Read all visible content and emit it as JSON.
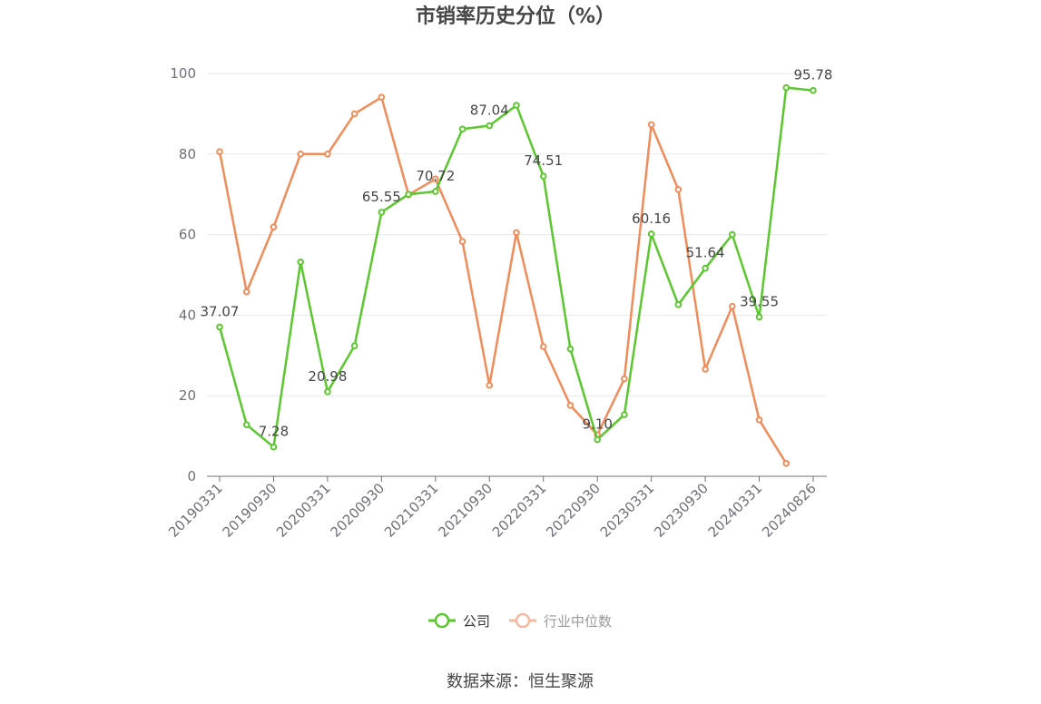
{
  "chart_data": {
    "type": "line",
    "title": "市销率历史分位（%）",
    "x": [
      "20190331",
      "20190630",
      "20190930",
      "20191231",
      "20200331",
      "20200630",
      "20200930",
      "20201231",
      "20210331",
      "20210630",
      "20210930",
      "20211231",
      "20220331",
      "20220630",
      "20220930",
      "20221231",
      "20230331",
      "20230630",
      "20230930",
      "20231231",
      "20240331",
      "20240630",
      "20240826"
    ],
    "xticks": [
      "20190331",
      "20190930",
      "20200331",
      "20200930",
      "20210331",
      "20210930",
      "20220331",
      "20220930",
      "20230331",
      "20230930",
      "20240331",
      "20240826"
    ],
    "yticks": [
      0,
      20,
      40,
      60,
      80,
      100
    ],
    "ylim": [
      0,
      100
    ],
    "grid": true,
    "legend_position": "bottom",
    "series": [
      {
        "name": "公司",
        "color": "#5bc72e",
        "values": [
          37.07,
          12.8,
          7.28,
          53.2,
          20.98,
          32.4,
          65.55,
          70.0,
          70.72,
          86.2,
          87.04,
          92.1,
          74.51,
          31.6,
          9.1,
          15.3,
          60.16,
          42.6,
          51.64,
          60.0,
          39.55,
          96.5,
          95.78
        ],
        "labels": {
          "0": "37.07",
          "2": "7.28",
          "4": "20.98",
          "6": "65.55",
          "8": "70.72",
          "10": "87.04",
          "12": "74.51",
          "14": "9.10",
          "16": "60.16",
          "18": "51.64",
          "20": "39.55",
          "22": "95.78"
        }
      },
      {
        "name": "行业中位数",
        "color": "#f08c5a",
        "values": [
          80.6,
          45.8,
          61.9,
          80.0,
          80.0,
          90.0,
          94.1,
          69.9,
          73.8,
          58.3,
          22.6,
          60.5,
          32.2,
          17.6,
          10.3,
          24.2,
          87.3,
          71.2,
          26.6,
          42.2,
          14.0,
          3.2,
          null
        ]
      }
    ]
  },
  "source": "数据来源：恒生聚源"
}
